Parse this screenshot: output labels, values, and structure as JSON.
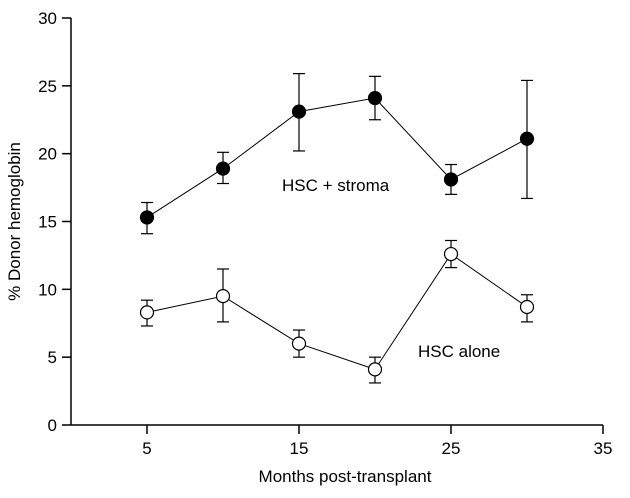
{
  "chart_data": {
    "type": "line",
    "xlabel": "Months post-transplant",
    "ylabel": "% Donor hemoglobin",
    "xlim": [
      0,
      35
    ],
    "ylim": [
      0,
      30
    ],
    "x_ticks": [
      5,
      15,
      25,
      35
    ],
    "y_ticks": [
      0,
      5,
      10,
      15,
      20,
      25,
      30
    ],
    "series": [
      {
        "name": "HSC + stroma",
        "marker": "filled-circle",
        "color": "#000000",
        "x": [
          5,
          10,
          15,
          20,
          25,
          30
        ],
        "y": [
          15.3,
          18.9,
          23.1,
          24.1,
          18.1,
          21.1
        ],
        "err_low": [
          14.1,
          17.8,
          20.2,
          22.5,
          17.0,
          16.7
        ],
        "err_high": [
          16.4,
          20.1,
          25.9,
          25.7,
          19.2,
          25.4
        ]
      },
      {
        "name": "HSC alone",
        "marker": "open-circle",
        "color": "#000000",
        "x": [
          5,
          10,
          15,
          20,
          25,
          30
        ],
        "y": [
          8.3,
          9.5,
          6.0,
          4.1,
          12.6,
          8.7
        ],
        "err_low": [
          7.3,
          7.6,
          5.0,
          3.1,
          11.6,
          7.6
        ],
        "err_high": [
          9.2,
          11.5,
          7.0,
          5.0,
          13.6,
          9.6
        ]
      }
    ],
    "annotations": [
      {
        "text": "HSC + stroma",
        "series": 0
      },
      {
        "text": "HSC alone",
        "series": 1
      }
    ]
  }
}
